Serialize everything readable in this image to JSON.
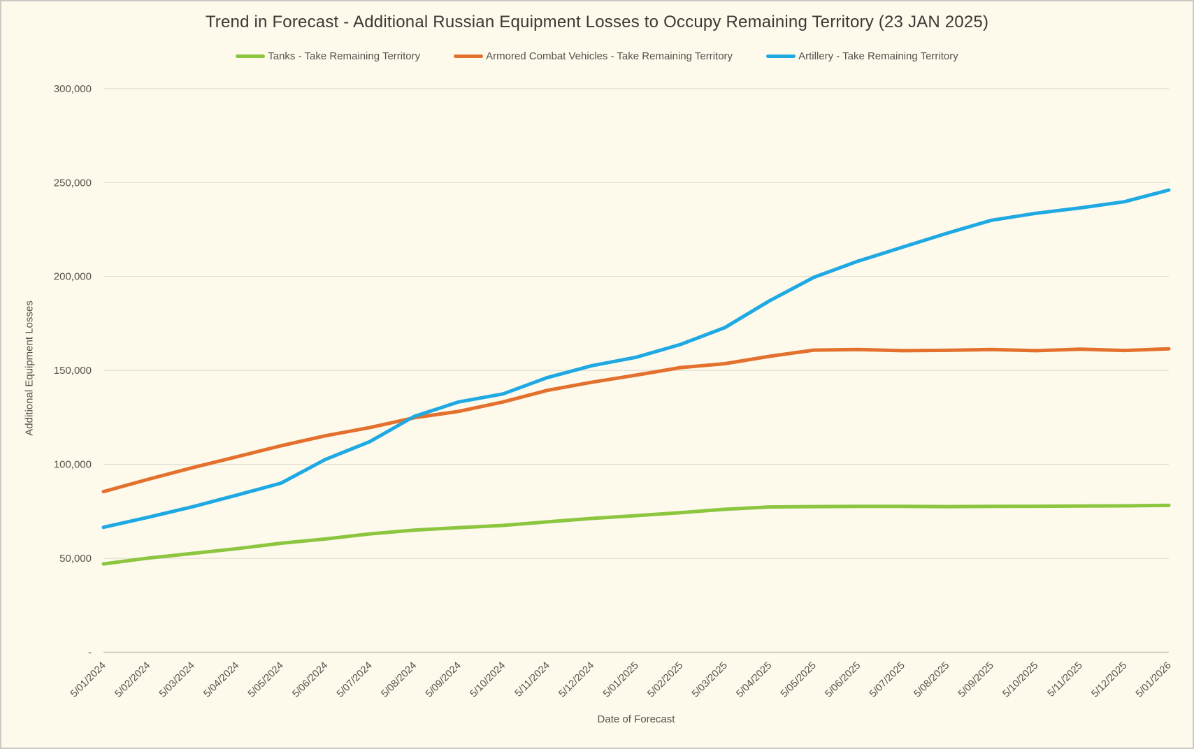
{
  "colors": {
    "background": "#FDF9EB",
    "frame_border": "#CBCAC5",
    "gridline": "#DFDCD2",
    "axis_line": "#C6C3BA",
    "title_text": "#3B3934",
    "label_text": "#55524C"
  },
  "chart_data": {
    "type": "line",
    "title": "Trend in Forecast - Additional Russian Equipment Losses to Occupy Remaining Territory (23 JAN 2025)",
    "xlabel": "Date of Forecast",
    "ylabel": "Additional Equipment Losses",
    "legend_position": "top",
    "grid": "horizontal",
    "ylim": [
      0,
      300000
    ],
    "y_ticks": [
      {
        "label": "300,000",
        "value": 300000
      },
      {
        "label": "250,000",
        "value": 250000
      },
      {
        "label": "200,000",
        "value": 200000
      },
      {
        "label": "150,000",
        "value": 150000
      },
      {
        "label": "100,000",
        "value": 100000
      },
      {
        "label": "50,000",
        "value": 50000
      },
      {
        "label": "-",
        "value": 0
      }
    ],
    "categories": [
      "5/01/2024",
      "5/02/2024",
      "5/03/2024",
      "5/04/2024",
      "5/05/2024",
      "5/06/2024",
      "5/07/2024",
      "5/08/2024",
      "5/09/2024",
      "5/10/2024",
      "5/11/2024",
      "5/12/2024",
      "5/01/2025",
      "5/02/2025",
      "5/03/2025",
      "5/04/2025",
      "5/05/2025",
      "5/06/2025",
      "5/07/2025",
      "5/08/2025",
      "5/09/2025",
      "5/10/2025",
      "5/11/2025",
      "5/12/2025",
      "5/01/2026"
    ],
    "series": [
      {
        "name": "Tanks - Take Remaining Territory",
        "color": "#8CC63F",
        "values": [
          47000,
          50100,
          52600,
          55100,
          58000,
          60300,
          63000,
          65000,
          66300,
          67500,
          69400,
          71200,
          72700,
          74300,
          76100,
          77300,
          77500,
          77600,
          77600,
          77500,
          77600,
          77700,
          77800,
          77900,
          78200
        ]
      },
      {
        "name": "Armored Combat Vehicles - Take Remaining Territory",
        "color": "#E3702C",
        "values": [
          85500,
          92000,
          98200,
          104000,
          109900,
          115200,
          119600,
          124800,
          128200,
          133200,
          139400,
          143700,
          147500,
          151500,
          153600,
          157500,
          160800,
          161100,
          160500,
          160700,
          161100,
          160500,
          161300,
          160600,
          161500
        ]
      },
      {
        "name": "Artillery - Take Remaining Territory",
        "color": "#1FA9E3",
        "values": [
          66500,
          71800,
          77400,
          83600,
          90000,
          102600,
          112100,
          125500,
          133200,
          137500,
          146200,
          152500,
          157000,
          163800,
          172800,
          187000,
          199500,
          208200,
          215600,
          223000,
          229900,
          233600,
          236500,
          239800,
          246000
        ]
      }
    ]
  }
}
